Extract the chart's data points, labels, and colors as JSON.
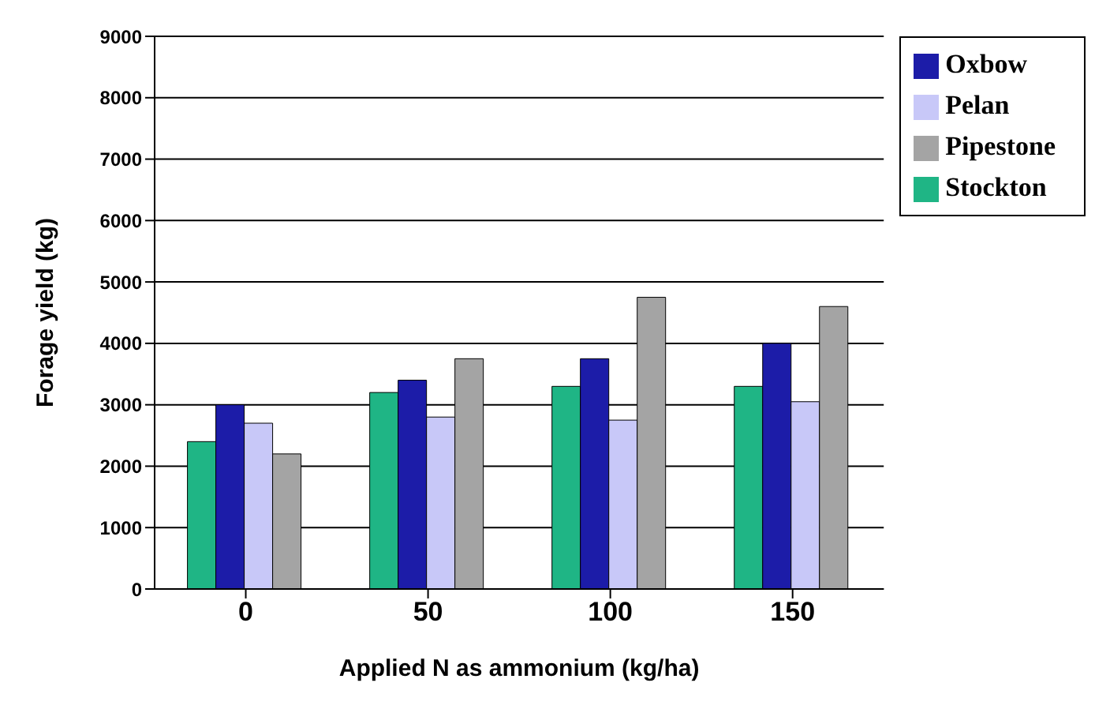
{
  "chart_data": {
    "type": "bar",
    "xlabel": "Applied N as ammonium (kg/ha)",
    "ylabel": "Forage yield (kg)",
    "categories": [
      "0",
      "50",
      "100",
      "150"
    ],
    "series": [
      {
        "name": "Stockton",
        "color": "#1fb585",
        "values": [
          2400,
          3200,
          3300,
          3300
        ]
      },
      {
        "name": "Oxbow",
        "color": "#1c1ca8",
        "values": [
          3000,
          3400,
          3750,
          4000
        ]
      },
      {
        "name": "Pelan",
        "color": "#c8c8f8",
        "values": [
          2700,
          2800,
          2750,
          3050
        ]
      },
      {
        "name": "Pipestone",
        "color": "#a4a4a4",
        "values": [
          2200,
          3750,
          4750,
          4600
        ]
      }
    ],
    "ylim": [
      0,
      9000
    ],
    "yticks": [
      0,
      1000,
      2000,
      3000,
      4000,
      5000,
      6000,
      7000,
      8000,
      9000
    ],
    "grid": "y",
    "legend": "top right"
  }
}
